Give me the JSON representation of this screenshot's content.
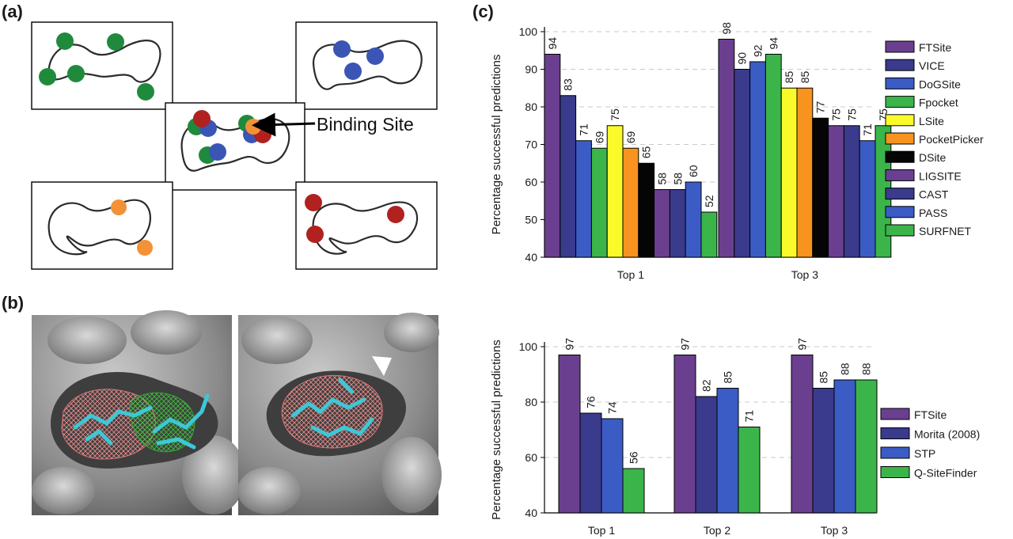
{
  "panels": {
    "a": "(a)",
    "b": "(b)",
    "c": "(c)"
  },
  "diagram_a": {
    "annotation": "Binding Site",
    "colors": {
      "green": "#1f8a3c",
      "blue": "#3b55b5",
      "orange": "#f39136",
      "red": "#b0211f"
    }
  },
  "chart_data": [
    {
      "type": "bar",
      "ylabel": "Percentage successful predictions",
      "ylim": [
        40,
        100
      ],
      "yticks": [
        40,
        50,
        60,
        70,
        80,
        90,
        100
      ],
      "grid": "y-dashed",
      "legend_position": "right",
      "categories": [
        "Top 1",
        "Top 3"
      ],
      "series": [
        {
          "name": "FTSite",
          "color": "#6b3f8f",
          "values": [
            94,
            98
          ]
        },
        {
          "name": "VICE",
          "color": "#3a3b8c",
          "values": [
            83,
            90
          ]
        },
        {
          "name": "DoGSite",
          "color": "#3b5cc4",
          "values": [
            71,
            92
          ]
        },
        {
          "name": "Fpocket",
          "color": "#3bb54a",
          "values": [
            69,
            94
          ]
        },
        {
          "name": "LSite",
          "color": "#fafa2a",
          "values": [
            75,
            85
          ]
        },
        {
          "name": "PocketPicker",
          "color": "#f7931e",
          "values": [
            69,
            85
          ]
        },
        {
          "name": "DSite",
          "color": "#050505",
          "values": [
            65,
            77
          ]
        },
        {
          "name": "LIGSITE",
          "color": "#6b3f8f",
          "values": [
            58,
            75
          ]
        },
        {
          "name": "CAST",
          "color": "#3a3b8c",
          "values": [
            58,
            75
          ]
        },
        {
          "name": "PASS",
          "color": "#3b5cc4",
          "values": [
            60,
            71
          ]
        },
        {
          "name": "SURFNET",
          "color": "#3bb54a",
          "values": [
            52,
            75
          ]
        }
      ]
    },
    {
      "type": "bar",
      "ylabel": "Percentage successful predictions",
      "ylim": [
        40,
        100
      ],
      "yticks": [
        40,
        60,
        80,
        100
      ],
      "grid": "y-dashed",
      "legend_position": "right",
      "categories": [
        "Top 1",
        "Top 2",
        "Top 3"
      ],
      "series": [
        {
          "name": "FTSite",
          "color": "#6b3f8f",
          "values": [
            97,
            97,
            97
          ]
        },
        {
          "name": "Morita (2008)",
          "color": "#3a3b8c",
          "values": [
            76,
            82,
            85
          ]
        },
        {
          "name": "STP",
          "color": "#3b5cc4",
          "values": [
            74,
            85,
            88
          ]
        },
        {
          "name": "Q-SiteFinder",
          "color": "#3bb54a",
          "values": [
            56,
            71,
            88
          ]
        }
      ]
    }
  ]
}
